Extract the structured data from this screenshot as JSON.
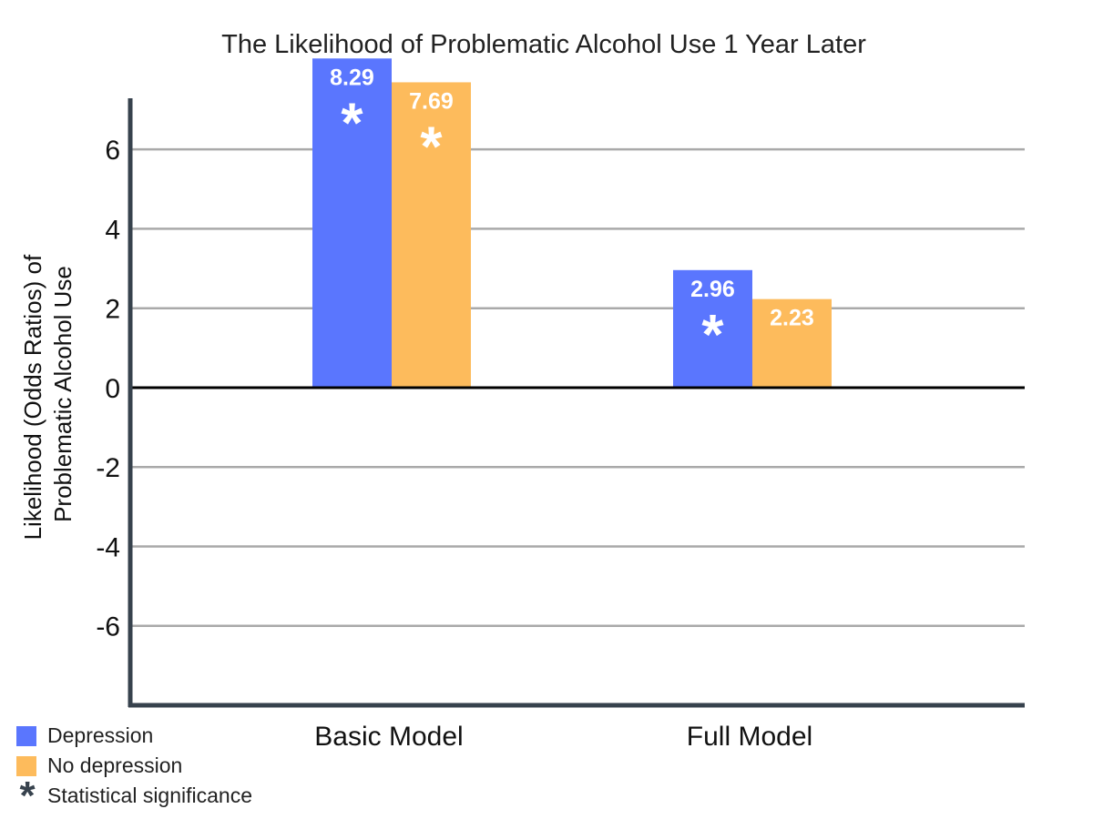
{
  "chart_data": {
    "type": "bar",
    "title": "The Likelihood of Problematic Alcohol Use 1 Year Later",
    "ylabel_lines": [
      "Likelihood (Odds Ratios) of",
      "Problematic Alcohol Use"
    ],
    "categories": [
      "Basic Model",
      "Full Model"
    ],
    "series": [
      {
        "name": "Depression",
        "values": [
          8.29,
          2.96
        ],
        "labels": [
          "8.29",
          "2.96"
        ],
        "significant": [
          true,
          true
        ],
        "color": "#5a76fe"
      },
      {
        "name": "No depression",
        "values": [
          7.69,
          2.23
        ],
        "labels": [
          "7.69",
          "2.23"
        ],
        "significant": [
          true,
          false
        ],
        "color": "#fdbb5c"
      }
    ],
    "ylim": [
      -8,
      7.7
    ],
    "yticks": [
      6,
      4,
      2,
      0,
      -2,
      -4,
      -6
    ],
    "ytick_labels": [
      "6",
      "4",
      "2",
      "0",
      "-2",
      "-4",
      "-6"
    ],
    "grid": true,
    "legend_position": "bottom-left",
    "significance_marker": "*"
  },
  "legend": {
    "items": [
      {
        "label": "Depression",
        "color": "#5a76fe"
      },
      {
        "label": "No depression",
        "color": "#fdbb5c"
      }
    ],
    "significance_label": "Statistical significance",
    "significance_symbol": "*"
  },
  "colors": {
    "axis": "#37424d",
    "grid": "#a9a9a9",
    "zero_line": "#000000"
  }
}
